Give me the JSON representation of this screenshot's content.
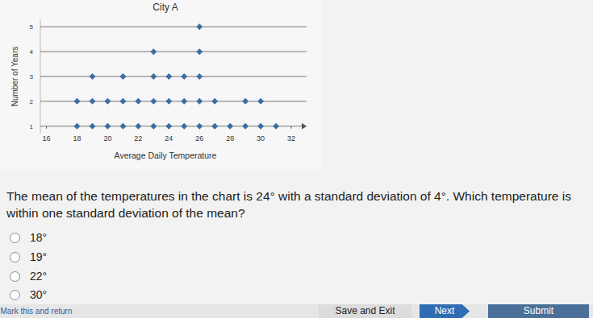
{
  "chart_data": {
    "type": "dot",
    "title": "City A",
    "x_label": "Average Daily Temperature",
    "y_label": "Number of Years",
    "x": [
      18,
      19,
      20,
      21,
      22,
      23,
      24,
      25,
      26,
      27,
      28,
      29,
      30,
      31
    ],
    "values": [
      2,
      3,
      2,
      3,
      2,
      4,
      3,
      3,
      5,
      2,
      1,
      2,
      2,
      1
    ],
    "color": "#3b6ea5",
    "marker": "diamond",
    "xlim": [
      15.6,
      33
    ],
    "ylim": [
      0.7,
      5.3
    ],
    "xticks": [
      16,
      18,
      20,
      22,
      24,
      26,
      28,
      30,
      32
    ],
    "yticks": [
      1,
      2,
      3,
      4,
      5
    ],
    "grid": true
  },
  "question": "The mean of the temperatures in the chart is 24° with a standard deviation of 4°. Which temperature is within one standard deviation of the mean?",
  "options": [
    "18°",
    "19°",
    "22°",
    "30°"
  ],
  "footer_link": "Mark this and return",
  "buttons": [
    "Save and Exit",
    "Next",
    "Submit"
  ]
}
